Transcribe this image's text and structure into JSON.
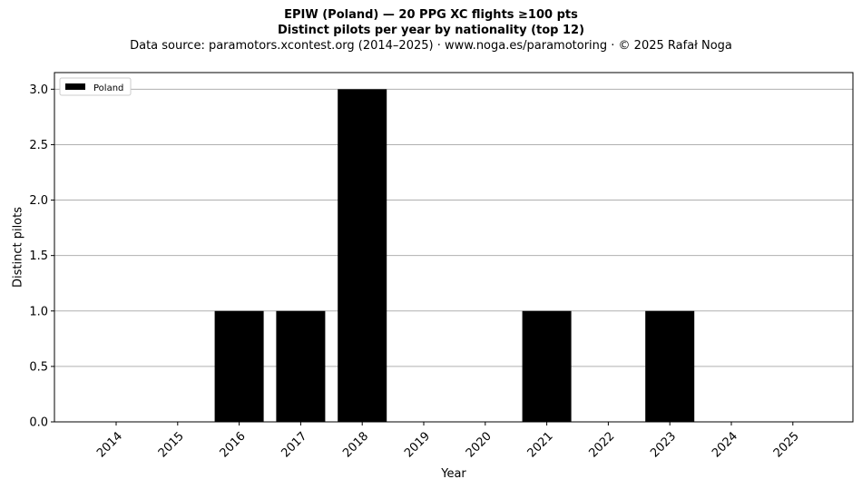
{
  "chart_data": {
    "type": "bar",
    "title": "EPIW (Poland)  —  20 PPG XC flights ≥100 pts",
    "subtitle": "Distinct pilots per year by nationality (top 12)",
    "source_note": "Data source: paramotors.xcontest.org (2014–2025)  ·  www.noga.es/paramotoring  ·  © 2025 Rafał Noga",
    "xlabel": "Year",
    "ylabel": "Distinct pilots",
    "categories": [
      "2014",
      "2015",
      "2016",
      "2017",
      "2018",
      "2019",
      "2020",
      "2021",
      "2022",
      "2023",
      "2024",
      "2025"
    ],
    "series": [
      {
        "name": "Poland",
        "values": [
          0,
          0,
          1,
          1,
          3,
          0,
          0,
          1,
          0,
          1,
          0,
          0
        ],
        "color": "#000000"
      }
    ],
    "ylim": [
      0,
      3.15
    ],
    "yticks": [
      "0.0",
      "0.5",
      "1.0",
      "1.5",
      "2.0",
      "2.5",
      "3.0"
    ],
    "grid": "horizontal",
    "legend_position": "top-left"
  }
}
